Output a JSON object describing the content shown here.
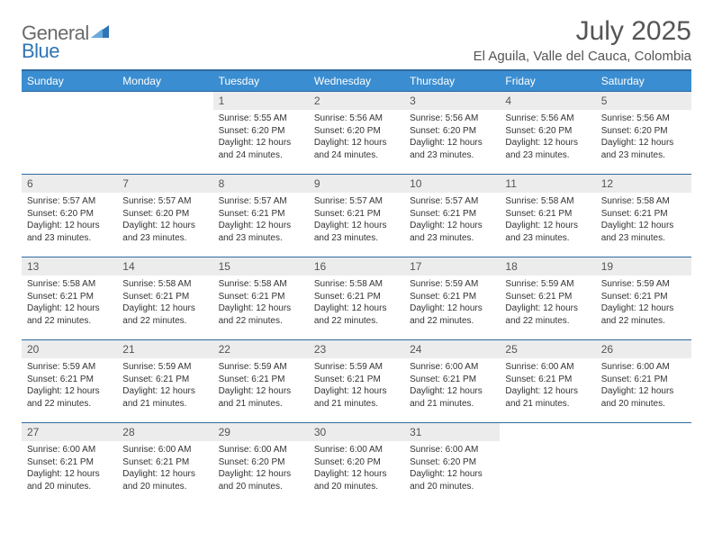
{
  "brand": {
    "word1": "General",
    "word2": "Blue",
    "shape_color": "#2f75b5"
  },
  "title": "July 2025",
  "location": "El Aguila, Valle del Cauca, Colombia",
  "colors": {
    "header_bg": "#3a8dd0",
    "header_border": "#2f6aa0",
    "daynum_bg": "#ececec",
    "text": "#333333",
    "title_text": "#555555"
  },
  "day_headers": [
    "Sunday",
    "Monday",
    "Tuesday",
    "Wednesday",
    "Thursday",
    "Friday",
    "Saturday"
  ],
  "weeks": [
    [
      {
        "n": null
      },
      {
        "n": null
      },
      {
        "n": "1",
        "sunrise": "5:55 AM",
        "sunset": "6:20 PM",
        "daylight": "12 hours and 24 minutes."
      },
      {
        "n": "2",
        "sunrise": "5:56 AM",
        "sunset": "6:20 PM",
        "daylight": "12 hours and 24 minutes."
      },
      {
        "n": "3",
        "sunrise": "5:56 AM",
        "sunset": "6:20 PM",
        "daylight": "12 hours and 23 minutes."
      },
      {
        "n": "4",
        "sunrise": "5:56 AM",
        "sunset": "6:20 PM",
        "daylight": "12 hours and 23 minutes."
      },
      {
        "n": "5",
        "sunrise": "5:56 AM",
        "sunset": "6:20 PM",
        "daylight": "12 hours and 23 minutes."
      }
    ],
    [
      {
        "n": "6",
        "sunrise": "5:57 AM",
        "sunset": "6:20 PM",
        "daylight": "12 hours and 23 minutes."
      },
      {
        "n": "7",
        "sunrise": "5:57 AM",
        "sunset": "6:20 PM",
        "daylight": "12 hours and 23 minutes."
      },
      {
        "n": "8",
        "sunrise": "5:57 AM",
        "sunset": "6:21 PM",
        "daylight": "12 hours and 23 minutes."
      },
      {
        "n": "9",
        "sunrise": "5:57 AM",
        "sunset": "6:21 PM",
        "daylight": "12 hours and 23 minutes."
      },
      {
        "n": "10",
        "sunrise": "5:57 AM",
        "sunset": "6:21 PM",
        "daylight": "12 hours and 23 minutes."
      },
      {
        "n": "11",
        "sunrise": "5:58 AM",
        "sunset": "6:21 PM",
        "daylight": "12 hours and 23 minutes."
      },
      {
        "n": "12",
        "sunrise": "5:58 AM",
        "sunset": "6:21 PM",
        "daylight": "12 hours and 23 minutes."
      }
    ],
    [
      {
        "n": "13",
        "sunrise": "5:58 AM",
        "sunset": "6:21 PM",
        "daylight": "12 hours and 22 minutes."
      },
      {
        "n": "14",
        "sunrise": "5:58 AM",
        "sunset": "6:21 PM",
        "daylight": "12 hours and 22 minutes."
      },
      {
        "n": "15",
        "sunrise": "5:58 AM",
        "sunset": "6:21 PM",
        "daylight": "12 hours and 22 minutes."
      },
      {
        "n": "16",
        "sunrise": "5:58 AM",
        "sunset": "6:21 PM",
        "daylight": "12 hours and 22 minutes."
      },
      {
        "n": "17",
        "sunrise": "5:59 AM",
        "sunset": "6:21 PM",
        "daylight": "12 hours and 22 minutes."
      },
      {
        "n": "18",
        "sunrise": "5:59 AM",
        "sunset": "6:21 PM",
        "daylight": "12 hours and 22 minutes."
      },
      {
        "n": "19",
        "sunrise": "5:59 AM",
        "sunset": "6:21 PM",
        "daylight": "12 hours and 22 minutes."
      }
    ],
    [
      {
        "n": "20",
        "sunrise": "5:59 AM",
        "sunset": "6:21 PM",
        "daylight": "12 hours and 22 minutes."
      },
      {
        "n": "21",
        "sunrise": "5:59 AM",
        "sunset": "6:21 PM",
        "daylight": "12 hours and 21 minutes."
      },
      {
        "n": "22",
        "sunrise": "5:59 AM",
        "sunset": "6:21 PM",
        "daylight": "12 hours and 21 minutes."
      },
      {
        "n": "23",
        "sunrise": "5:59 AM",
        "sunset": "6:21 PM",
        "daylight": "12 hours and 21 minutes."
      },
      {
        "n": "24",
        "sunrise": "6:00 AM",
        "sunset": "6:21 PM",
        "daylight": "12 hours and 21 minutes."
      },
      {
        "n": "25",
        "sunrise": "6:00 AM",
        "sunset": "6:21 PM",
        "daylight": "12 hours and 21 minutes."
      },
      {
        "n": "26",
        "sunrise": "6:00 AM",
        "sunset": "6:21 PM",
        "daylight": "12 hours and 20 minutes."
      }
    ],
    [
      {
        "n": "27",
        "sunrise": "6:00 AM",
        "sunset": "6:21 PM",
        "daylight": "12 hours and 20 minutes."
      },
      {
        "n": "28",
        "sunrise": "6:00 AM",
        "sunset": "6:21 PM",
        "daylight": "12 hours and 20 minutes."
      },
      {
        "n": "29",
        "sunrise": "6:00 AM",
        "sunset": "6:20 PM",
        "daylight": "12 hours and 20 minutes."
      },
      {
        "n": "30",
        "sunrise": "6:00 AM",
        "sunset": "6:20 PM",
        "daylight": "12 hours and 20 minutes."
      },
      {
        "n": "31",
        "sunrise": "6:00 AM",
        "sunset": "6:20 PM",
        "daylight": "12 hours and 20 minutes."
      },
      {
        "n": null
      },
      {
        "n": null
      }
    ]
  ],
  "labels": {
    "sunrise": "Sunrise:",
    "sunset": "Sunset:",
    "daylight": "Daylight:"
  }
}
